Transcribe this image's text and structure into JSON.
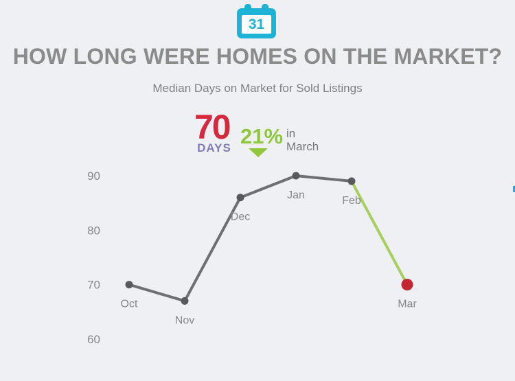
{
  "header": {
    "calendar_day": "31",
    "title": "HOW LONG WERE HOMES ON THE MARKET?",
    "subtitle": "Median Days on Market for Sold Listings"
  },
  "stat": {
    "value": "70",
    "unit": "DAYS",
    "change_percent": "21%",
    "period_line1": "in",
    "period_line2": "March",
    "value_color": "#d6293e",
    "unit_color": "#837ab9",
    "change_color": "#8fc63c"
  },
  "colors": {
    "background": "#eef0f3",
    "title_text": "#8b8b8b",
    "subtitle_text": "#7e8083",
    "calendar_teal": "#1db3d6",
    "axis_text": "#86878a"
  },
  "chart_data": {
    "type": "line",
    "title": "Median Days on Market for Sold Listings",
    "categories": [
      "Oct",
      "Nov",
      "Dec",
      "Jan",
      "Feb",
      "Mar"
    ],
    "values": [
      70,
      67,
      86,
      90,
      89,
      70
    ],
    "yticks": [
      90,
      80,
      70,
      60
    ],
    "ylim": [
      60,
      90
    ],
    "grid": false,
    "legend": "none",
    "xlabel": "",
    "ylabel": "",
    "line_color": "#6e6f72",
    "point_color": "#58595c",
    "label_color": "#86878a",
    "highlight_segment": {
      "from": "Feb",
      "to": "Mar",
      "color": "#a5d05e"
    },
    "highlight_point": {
      "category": "Mar",
      "color": "#c32531"
    }
  }
}
